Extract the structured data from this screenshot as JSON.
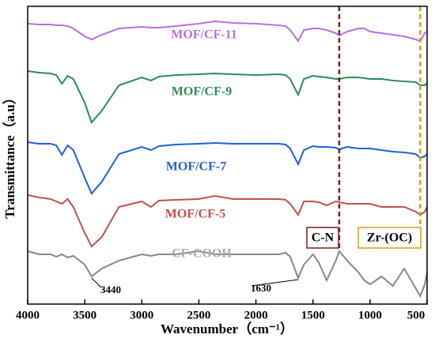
{
  "chart_data": {
    "type": "line",
    "xlabel": "Wavenumber（cm⁻¹）",
    "ylabel": "Transmittance（a.u）",
    "x": [
      4000,
      3900,
      3800,
      3750,
      3700,
      3650,
      3600,
      3500,
      3440,
      3350,
      3200,
      3000,
      2920,
      2850,
      2700,
      2500,
      2360,
      2200,
      2000,
      1800,
      1740,
      1700,
      1630,
      1580,
      1500,
      1450,
      1380,
      1300,
      1270,
      1200,
      1100,
      1050,
      1000,
      900,
      800,
      700,
      600,
      560,
      520,
      500
    ],
    "xlim": [
      4000,
      500
    ],
    "xticks": [
      4000,
      3500,
      3000,
      2500,
      2000,
      1500,
      1000,
      500
    ],
    "ylim": [
      15,
      392
    ],
    "series": [
      {
        "name": "MOF/CF-11",
        "color": "#b86ee0",
        "values": [
          370,
          369,
          369,
          368,
          368,
          367,
          364,
          354,
          350,
          356,
          364,
          366,
          365,
          365,
          367,
          370,
          373,
          371,
          370,
          368,
          367,
          362,
          348,
          362,
          364,
          364,
          362,
          358,
          355,
          360,
          364,
          364,
          360,
          358,
          356,
          354,
          350,
          348,
          358,
          360
        ]
      },
      {
        "name": "MOF/CF-9",
        "color": "#2e8b57",
        "values": [
          310,
          308,
          307,
          305,
          294,
          304,
          300,
          270,
          245,
          260,
          292,
          302,
          298,
          303,
          305,
          306,
          307,
          306,
          305,
          306,
          305,
          300,
          280,
          300,
          304,
          303,
          302,
          300,
          300,
          302,
          302,
          301,
          300,
          300,
          298,
          297,
          296,
          292,
          292,
          295
        ]
      },
      {
        "name": "MOF/CF-7",
        "color": "#1f5fd6",
        "values": [
          220,
          218,
          218,
          216,
          204,
          216,
          210,
          175,
          155,
          170,
          205,
          214,
          210,
          215,
          217,
          218,
          219,
          218,
          218,
          218,
          217,
          212,
          192,
          210,
          215,
          214,
          214,
          213,
          211,
          214,
          212,
          212,
          212,
          210,
          208,
          207,
          205,
          200,
          202,
          205
        ]
      },
      {
        "name": "MOF/CF-5",
        "color": "#c0504d",
        "values": [
          153,
          150,
          148,
          145,
          142,
          148,
          138,
          105,
          88,
          100,
          138,
          145,
          138,
          146,
          147,
          148,
          152,
          148,
          148,
          148,
          147,
          142,
          128,
          145,
          145,
          144,
          140,
          145,
          144,
          142,
          142,
          142,
          142,
          138,
          138,
          138,
          132,
          128,
          132,
          138
        ]
      },
      {
        "name": "CF-COOH",
        "color": "#888888",
        "values": [
          82,
          78,
          78,
          75,
          78,
          74,
          76,
          65,
          50,
          60,
          70,
          78,
          76,
          78,
          78,
          82,
          78,
          78,
          78,
          78,
          80,
          75,
          48,
          65,
          78,
          68,
          45,
          70,
          82,
          70,
          55,
          45,
          40,
          50,
          38,
          60,
          35,
          25,
          40,
          55
        ]
      }
    ],
    "peak_labels": [
      3440,
      1630
    ],
    "reference_lines": [
      {
        "x": 1270,
        "color": "#7b1c1c",
        "label": "C-N"
      },
      {
        "x": 560,
        "color": "#d4a017",
        "label": "Zr-(OC)"
      }
    ]
  }
}
